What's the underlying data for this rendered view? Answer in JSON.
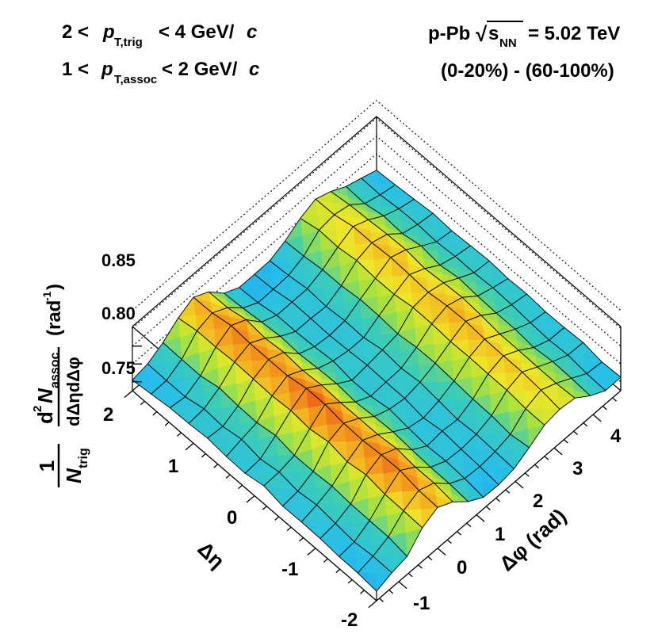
{
  "chart_data": {
    "type": "surface3d",
    "title_left_line1": "2 < p_T,trig < 4 GeV/c",
    "title_left_line2": "1 < p_T,assoc < 2 GeV/c",
    "title_right_line1": "p-Pb √s_NN = 5.02 TeV",
    "title_right_line2": "(0-20%) - (60-100%)",
    "labels": {
      "pT_trig_lo": "2 <",
      "pT_trig_p": "p",
      "pT_trig_sub": "T,trig",
      "pT_trig_hi": "< 4 GeV/",
      "pT_assoc_lo": "1 <",
      "pT_assoc_p": "p",
      "pT_assoc_sub": "T,assoc",
      "pT_assoc_hi": "< 2 GeV/",
      "c": "c",
      "system": "p-Pb",
      "sqrt": "√",
      "s": "s",
      "nn": "NN",
      "energy": "= 5.02 TeV",
      "centrality": "(0-20%) - (60-100%)",
      "z_one": "1",
      "z_ntrig": "N",
      "z_trig": "trig",
      "z_d2": "d",
      "z_sq": "2",
      "z_nassoc": "N",
      "z_assoc": "assoc",
      "z_deta": "dΔηdΔφ",
      "z_unit": "(rad",
      "z_unit_exp": "-1",
      "z_unit_close": ")",
      "eta_axis": "Δη",
      "phi_axis": "Δφ (rad)"
    },
    "x_axis": {
      "name": "Δφ (rad)",
      "range": [
        -1.5708,
        4.7124
      ],
      "ticks": [
        -1,
        0,
        1,
        2,
        3,
        4
      ]
    },
    "y_axis": {
      "name": "Δη",
      "range": [
        -2,
        2
      ],
      "ticks": [
        -2,
        -1,
        0,
        1,
        2
      ]
    },
    "z_axis": {
      "name": "1/N_trig d²N_assoc/dΔηdΔφ (rad⁻¹)",
      "range": [
        0.725,
        0.875
      ],
      "ticks": [
        0.75,
        0.8,
        0.85
      ]
    },
    "z_tick_labels": [
      "0.75",
      "0.80",
      "0.85"
    ],
    "phi_tick_labels": [
      "-1",
      "0",
      "1",
      "2",
      "3",
      "4"
    ],
    "eta_tick_labels": [
      "-2",
      "-1",
      "0",
      "1",
      "2"
    ],
    "model": {
      "baseline": 0.768,
      "near_side_amplitude": 0.085,
      "near_side_center": 0.0,
      "away_side_amplitude": 0.068,
      "away_side_center": 3.1416,
      "eta_edge_droop": 0.012
    },
    "grid": {
      "n_phi": 16,
      "n_eta": 13
    }
  }
}
